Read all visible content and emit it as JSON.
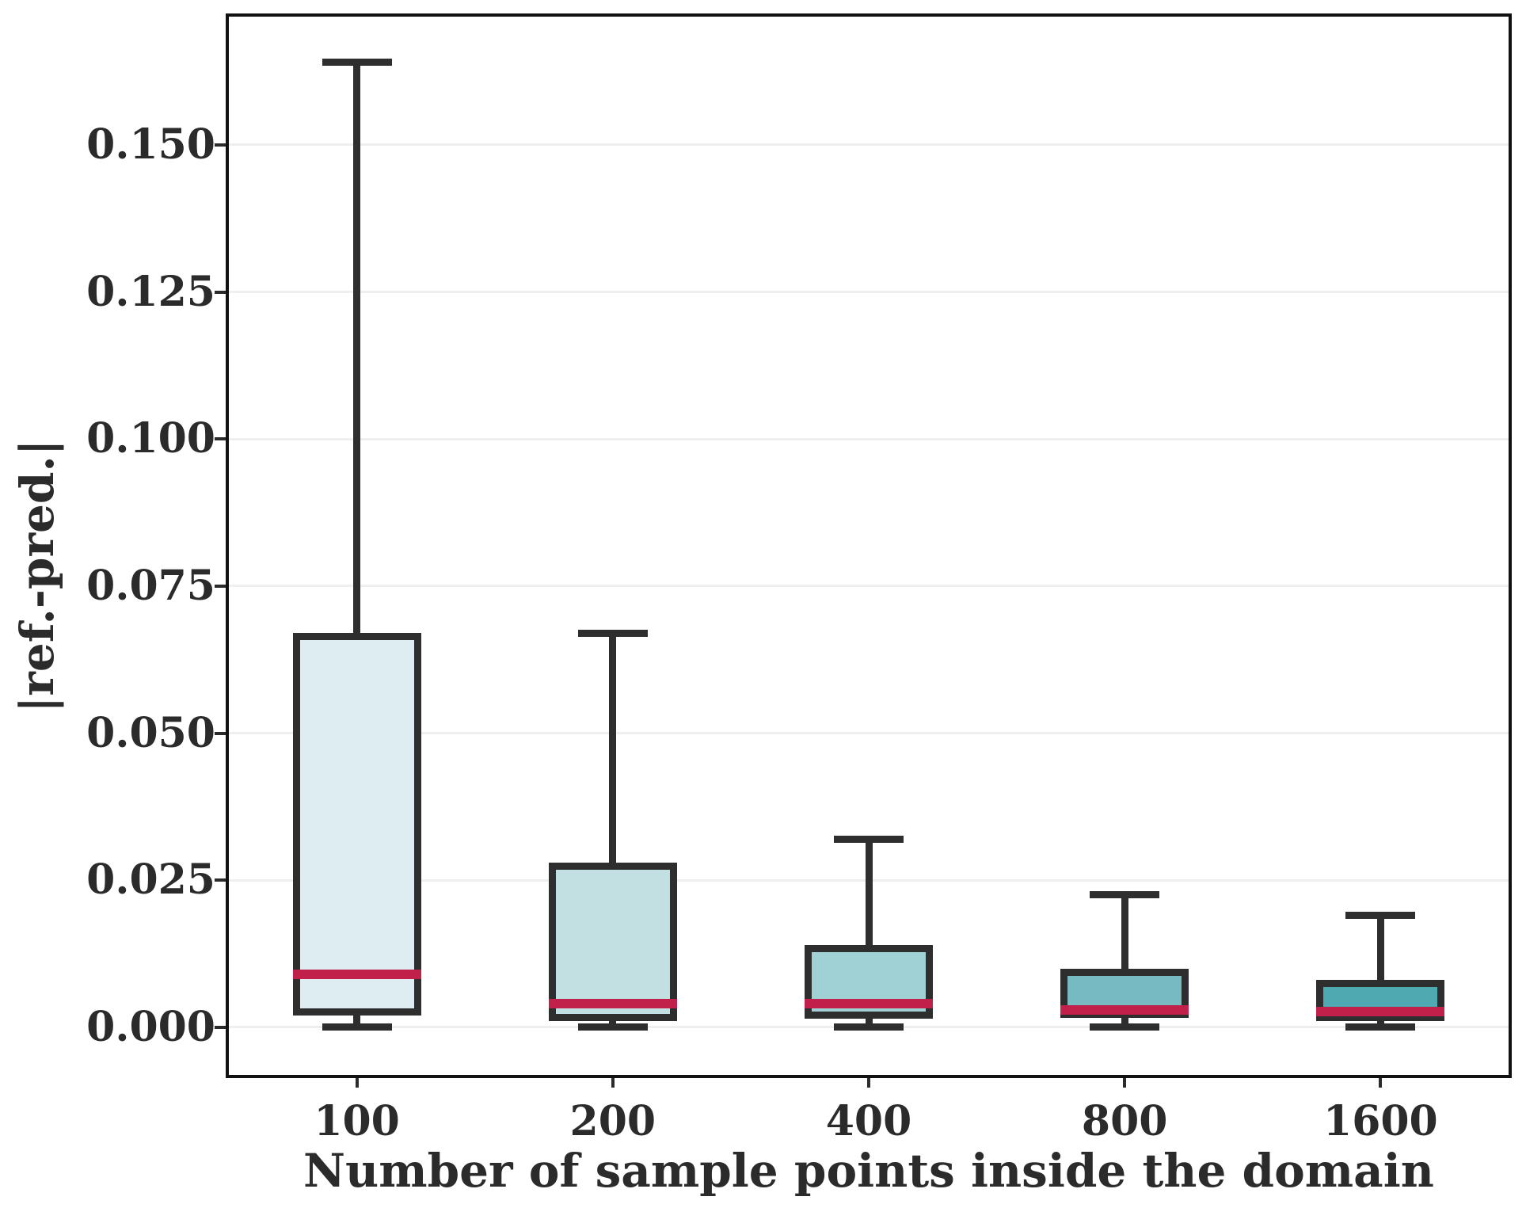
{
  "chart_data": {
    "type": "box",
    "title": "",
    "xlabel": "Number of sample points inside the domain",
    "ylabel": "|ref.-pred.|",
    "categories": [
      "100",
      "200",
      "400",
      "800",
      "1600"
    ],
    "yticks": [
      {
        "value": 0.0,
        "label": "0.000"
      },
      {
        "value": 0.025,
        "label": "0.025"
      },
      {
        "value": 0.05,
        "label": "0.050"
      },
      {
        "value": 0.075,
        "label": "0.075"
      },
      {
        "value": 0.1,
        "label": "0.100"
      },
      {
        "value": 0.125,
        "label": "0.125"
      },
      {
        "value": 0.15,
        "label": "0.150"
      }
    ],
    "ylim": [
      -0.0081,
      0.1718
    ],
    "grid": "horizontal",
    "legend": "none",
    "boxes": [
      {
        "category": "100",
        "whisker_low": 0.0,
        "q1": 0.002,
        "median": 0.009,
        "q3": 0.067,
        "whisker_high": 0.164,
        "fill": "#ddedf1"
      },
      {
        "category": "200",
        "whisker_low": 0.0,
        "q1": 0.001,
        "median": 0.004,
        "q3": 0.028,
        "whisker_high": 0.067,
        "fill": "#c2e0e2"
      },
      {
        "category": "400",
        "whisker_low": 0.0,
        "q1": 0.0015,
        "median": 0.004,
        "q3": 0.014,
        "whisker_high": 0.032,
        "fill": "#a0d1d5"
      },
      {
        "category": "800",
        "whisker_low": 0.0,
        "q1": 0.0016,
        "median": 0.003,
        "q3": 0.01,
        "whisker_high": 0.0225,
        "fill": "#77bac1"
      },
      {
        "category": "1600",
        "whisker_low": 0.0,
        "q1": 0.001,
        "median": 0.0027,
        "q3": 0.008,
        "whisker_high": 0.019,
        "fill": "#4ea9b0"
      }
    ],
    "colors": {
      "median": "#c1204a",
      "box_edge": "#2e2e2e",
      "whisker": "#2e2e2e",
      "grid": "#efefef",
      "spine": "#111111",
      "text": "#2b2b2b"
    }
  }
}
